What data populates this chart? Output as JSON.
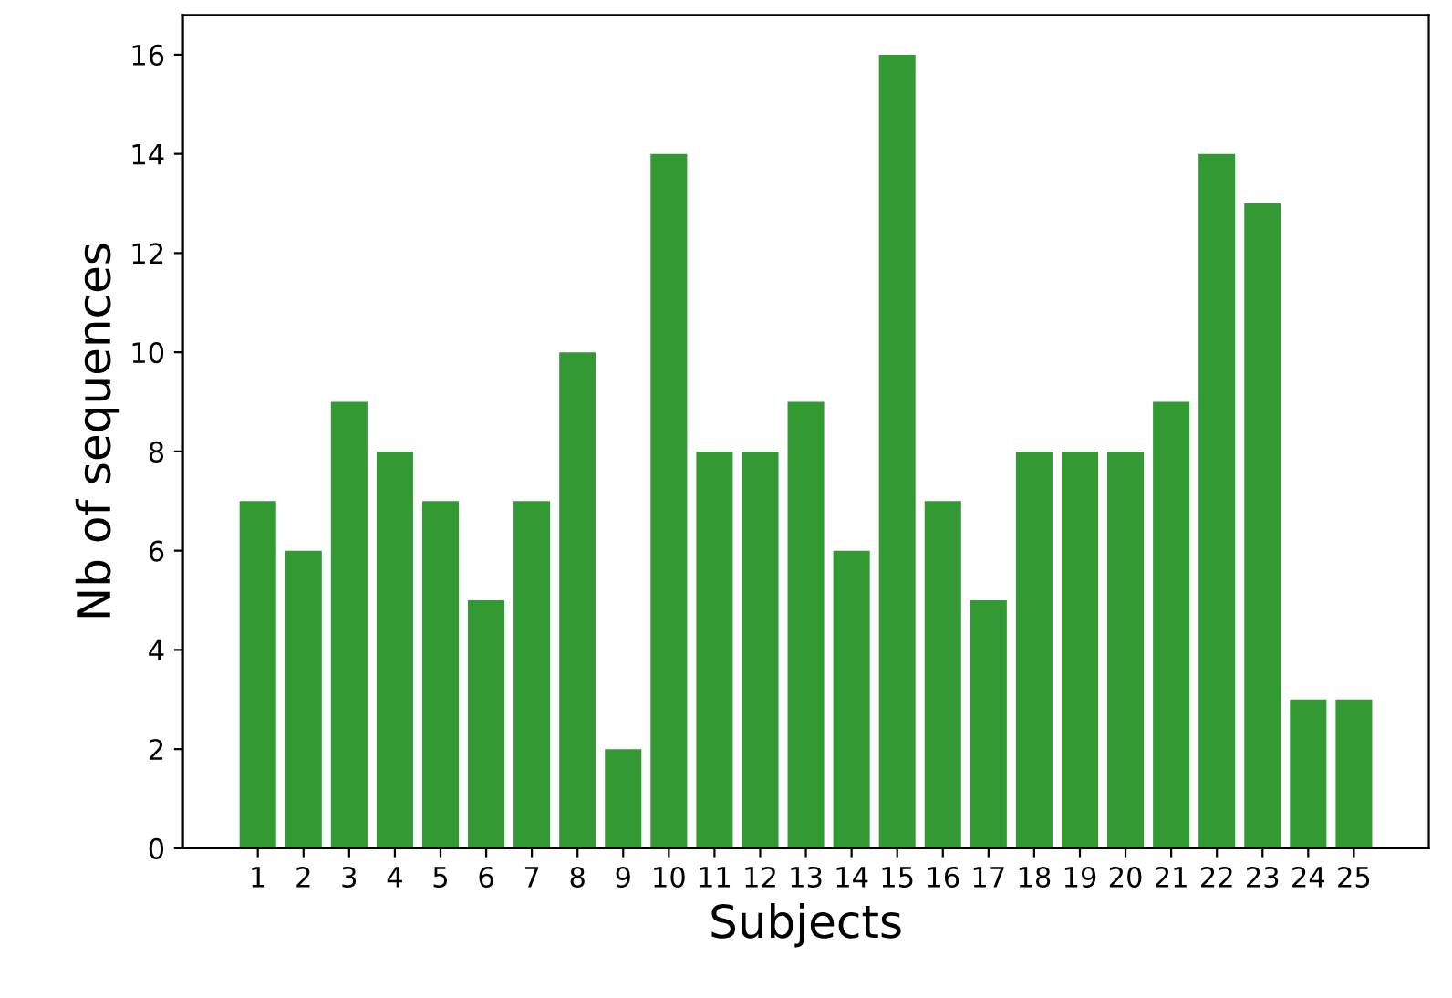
{
  "chart_data": {
    "type": "bar",
    "xlabel": "Subjects",
    "ylabel": "Nb of sequences",
    "categories": [
      "1",
      "2",
      "3",
      "4",
      "5",
      "6",
      "7",
      "8",
      "9",
      "10",
      "11",
      "12",
      "13",
      "14",
      "15",
      "16",
      "17",
      "18",
      "19",
      "20",
      "21",
      "22",
      "23",
      "24",
      "25"
    ],
    "values": [
      7,
      6,
      9,
      8,
      7,
      5,
      7,
      10,
      2,
      14,
      8,
      8,
      9,
      6,
      16,
      7,
      5,
      8,
      8,
      8,
      9,
      14,
      13,
      3,
      3
    ],
    "color": "#339933",
    "ylim": [
      0,
      16.8
    ],
    "yticks": [
      0,
      2,
      4,
      6,
      8,
      10,
      12,
      14,
      16
    ],
    "grid": false,
    "legend": false
  }
}
